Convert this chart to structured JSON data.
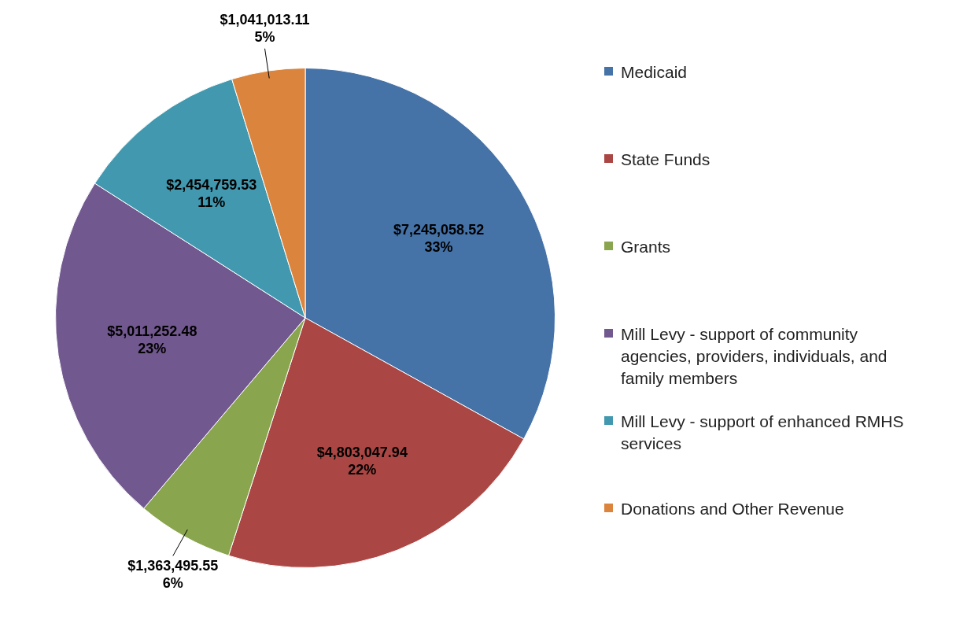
{
  "chart_data": {
    "type": "pie",
    "categories": [
      "Medicaid",
      "State Funds",
      "Grants",
      "Mill Levy - support of community agencies, providers, individuals, and family members",
      "Mill Levy - support of enhanced RMHS services",
      "Donations and Other Revenue"
    ],
    "values": [
      7245058.52,
      4803047.94,
      1363495.55,
      5011252.48,
      2454759.53,
      1041013.11
    ],
    "colors": [
      "#4572a7",
      "#aa4643",
      "#89a54e",
      "#71588f",
      "#4198af",
      "#db843d"
    ],
    "value_labels": [
      "$7,245,058.52\n33%",
      "$4,803,047.94\n22%",
      "$1,363,495.55\n6%",
      "$5,011,252.48\n23%",
      "$2,454,759.53\n11%",
      "$1,041,013.11\n5%"
    ],
    "legend": "right"
  }
}
